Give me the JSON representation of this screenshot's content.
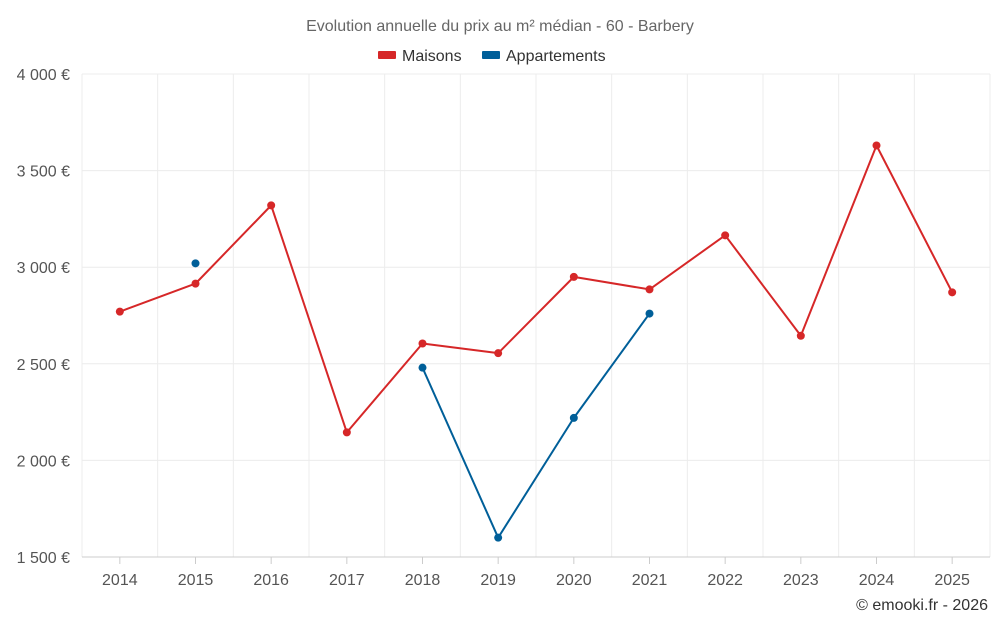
{
  "chart_data": {
    "type": "line",
    "title": "Evolution annuelle du prix au m² médian - 60 - Barbery",
    "categories": [
      "2014",
      "2015",
      "2016",
      "2017",
      "2018",
      "2019",
      "2020",
      "2021",
      "2022",
      "2023",
      "2024",
      "2025"
    ],
    "ylim": [
      1500,
      4000
    ],
    "yticks": [
      1500,
      2000,
      2500,
      3000,
      3500,
      4000
    ],
    "ytick_labels": [
      "1 500 €",
      "2 000 €",
      "2 500 €",
      "3 000 €",
      "3 500 €",
      "4 000 €"
    ],
    "xlabel": "",
    "ylabel": "",
    "grid": true,
    "legend_position": "top-center",
    "series": [
      {
        "name": "Maisons",
        "color": "#d62728",
        "values": [
          2770,
          2915,
          3320,
          2145,
          2605,
          2555,
          2950,
          2885,
          3165,
          2645,
          3630,
          2870
        ]
      },
      {
        "name": "Appartements",
        "color": "#005f99",
        "values": [
          null,
          3020,
          null,
          null,
          2480,
          1600,
          2220,
          2760,
          null,
          null,
          null,
          null
        ]
      }
    ],
    "credit": "© emooki.fr - 2026"
  }
}
